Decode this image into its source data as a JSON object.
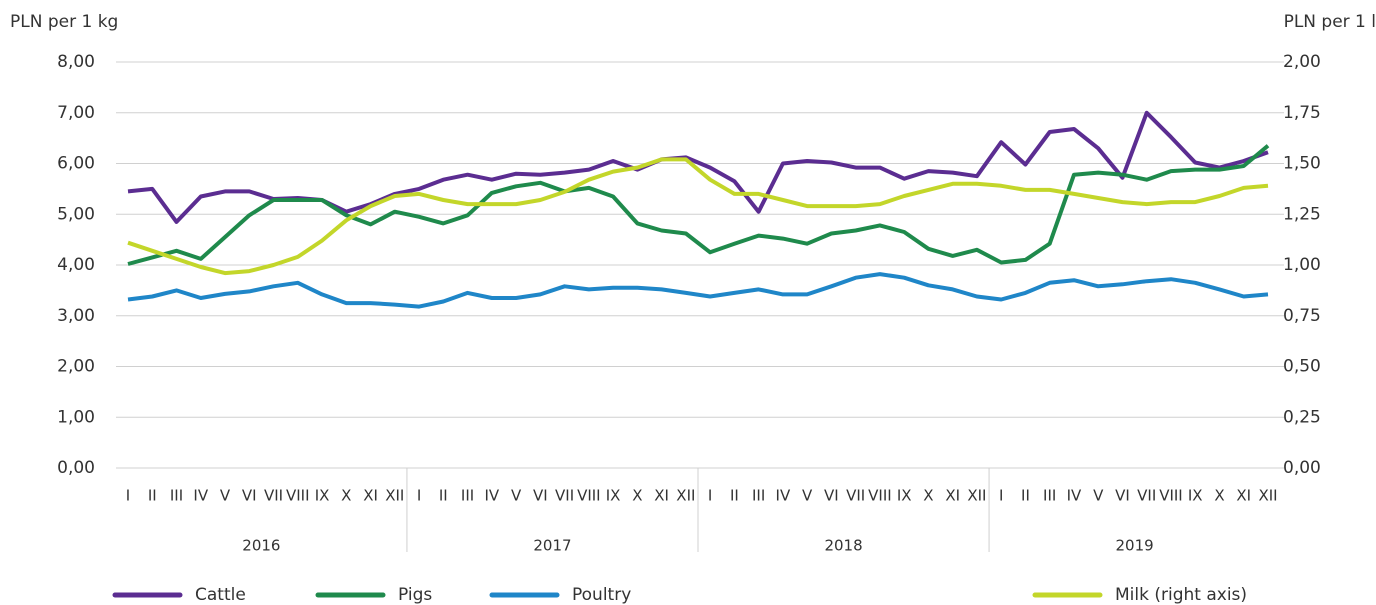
{
  "chart_data": {
    "type": "line",
    "y_label": "PLN per 1 kg",
    "y2_label": "PLN per 1 l",
    "categories": [
      "I",
      "II",
      "III",
      "IV",
      "V",
      "VI",
      "VII",
      "VIII",
      "IX",
      "X",
      "XI",
      "XII",
      "I",
      "II",
      "III",
      "IV",
      "V",
      "VI",
      "VII",
      "VIII",
      "IX",
      "X",
      "XI",
      "XII",
      "I",
      "II",
      "III",
      "IV",
      "V",
      "VI",
      "VII",
      "VIII",
      "IX",
      "X",
      "XI",
      "XII",
      "I",
      "II",
      "III",
      "IV",
      "V",
      "VI",
      "VII",
      "VIII",
      "IX",
      "X",
      "XI",
      "XII"
    ],
    "x_groups": [
      "2016",
      "2017",
      "2018",
      "2019"
    ],
    "ylim": [
      0,
      8
    ],
    "yticks": [
      {
        "value": 0,
        "label": "0,00"
      },
      {
        "value": 1,
        "label": "1,00"
      },
      {
        "value": 2,
        "label": "2,00"
      },
      {
        "value": 3,
        "label": "3,00"
      },
      {
        "value": 4,
        "label": "4,00"
      },
      {
        "value": 5,
        "label": "5,00"
      },
      {
        "value": 6,
        "label": "6,00"
      },
      {
        "value": 7,
        "label": "7,00"
      },
      {
        "value": 8,
        "label": "8,00"
      }
    ],
    "y2lim": [
      0,
      2
    ],
    "y2ticks": [
      {
        "value": 0,
        "label": "0,00"
      },
      {
        "value": 0.25,
        "label": "0,25"
      },
      {
        "value": 0.5,
        "label": "0,50"
      },
      {
        "value": 0.75,
        "label": "0,75"
      },
      {
        "value": 1,
        "label": "1,00"
      },
      {
        "value": 1.25,
        "label": "1,25"
      },
      {
        "value": 1.5,
        "label": "1,50"
      },
      {
        "value": 1.75,
        "label": "1,75"
      },
      {
        "value": 2,
        "label": "2,00"
      }
    ],
    "grid": true,
    "series": [
      {
        "name": "Cattle",
        "color": "#5b2d91",
        "values": [
          5.45,
          5.5,
          4.85,
          5.35,
          5.45,
          5.45,
          5.3,
          5.32,
          5.28,
          5.05,
          5.2,
          5.4,
          5.5,
          5.68,
          5.78,
          5.68,
          5.8,
          5.78,
          5.82,
          5.88,
          6.05,
          5.88,
          6.08,
          6.12,
          5.92,
          5.65,
          5.05,
          6.0,
          6.05,
          6.02,
          5.92,
          5.92,
          5.7,
          5.85,
          5.82,
          5.75,
          6.42,
          5.98,
          6.62,
          6.68,
          6.3,
          5.72,
          7.0,
          6.52,
          6.02,
          5.92,
          6.05,
          6.22
        ]
      },
      {
        "name": "Pigs",
        "color": "#1f8a4c",
        "values": [
          4.02,
          4.15,
          4.28,
          4.12,
          4.55,
          4.98,
          5.28,
          5.28,
          5.28,
          4.98,
          4.8,
          5.05,
          4.95,
          4.82,
          4.98,
          5.42,
          5.55,
          5.62,
          5.45,
          5.52,
          5.35,
          4.82,
          4.68,
          4.62,
          4.25,
          4.42,
          4.58,
          4.52,
          4.42,
          4.62,
          4.68,
          4.78,
          4.65,
          4.32,
          4.18,
          4.3,
          4.05,
          4.1,
          4.42,
          5.78,
          5.82,
          5.78,
          5.68,
          5.85,
          5.88,
          5.88,
          5.95,
          6.35
        ]
      },
      {
        "name": "Poultry",
        "color": "#1f86c8",
        "values": [
          3.32,
          3.38,
          3.5,
          3.35,
          3.43,
          3.48,
          3.58,
          3.65,
          3.42,
          3.25,
          3.25,
          3.22,
          3.18,
          3.28,
          3.45,
          3.35,
          3.35,
          3.42,
          3.58,
          3.52,
          3.55,
          3.55,
          3.52,
          3.45,
          3.38,
          3.45,
          3.52,
          3.42,
          3.42,
          3.58,
          3.75,
          3.82,
          3.75,
          3.6,
          3.52,
          3.38,
          3.32,
          3.45,
          3.65,
          3.7,
          3.58,
          3.62,
          3.68,
          3.72,
          3.65,
          3.52,
          3.38,
          3.42
        ]
      },
      {
        "name": "Milk (right axis)",
        "color": "#c3d62a",
        "axis": "y2",
        "values": [
          1.11,
          1.07,
          1.03,
          0.99,
          0.96,
          0.97,
          1.0,
          1.04,
          1.12,
          1.22,
          1.29,
          1.34,
          1.35,
          1.32,
          1.3,
          1.3,
          1.3,
          1.32,
          1.36,
          1.42,
          1.46,
          1.48,
          1.52,
          1.52,
          1.42,
          1.35,
          1.35,
          1.32,
          1.29,
          1.29,
          1.29,
          1.3,
          1.34,
          1.37,
          1.4,
          1.4,
          1.39,
          1.37,
          1.37,
          1.35,
          1.33,
          1.31,
          1.3,
          1.31,
          1.31,
          1.34,
          1.38,
          1.39
        ]
      }
    ]
  }
}
